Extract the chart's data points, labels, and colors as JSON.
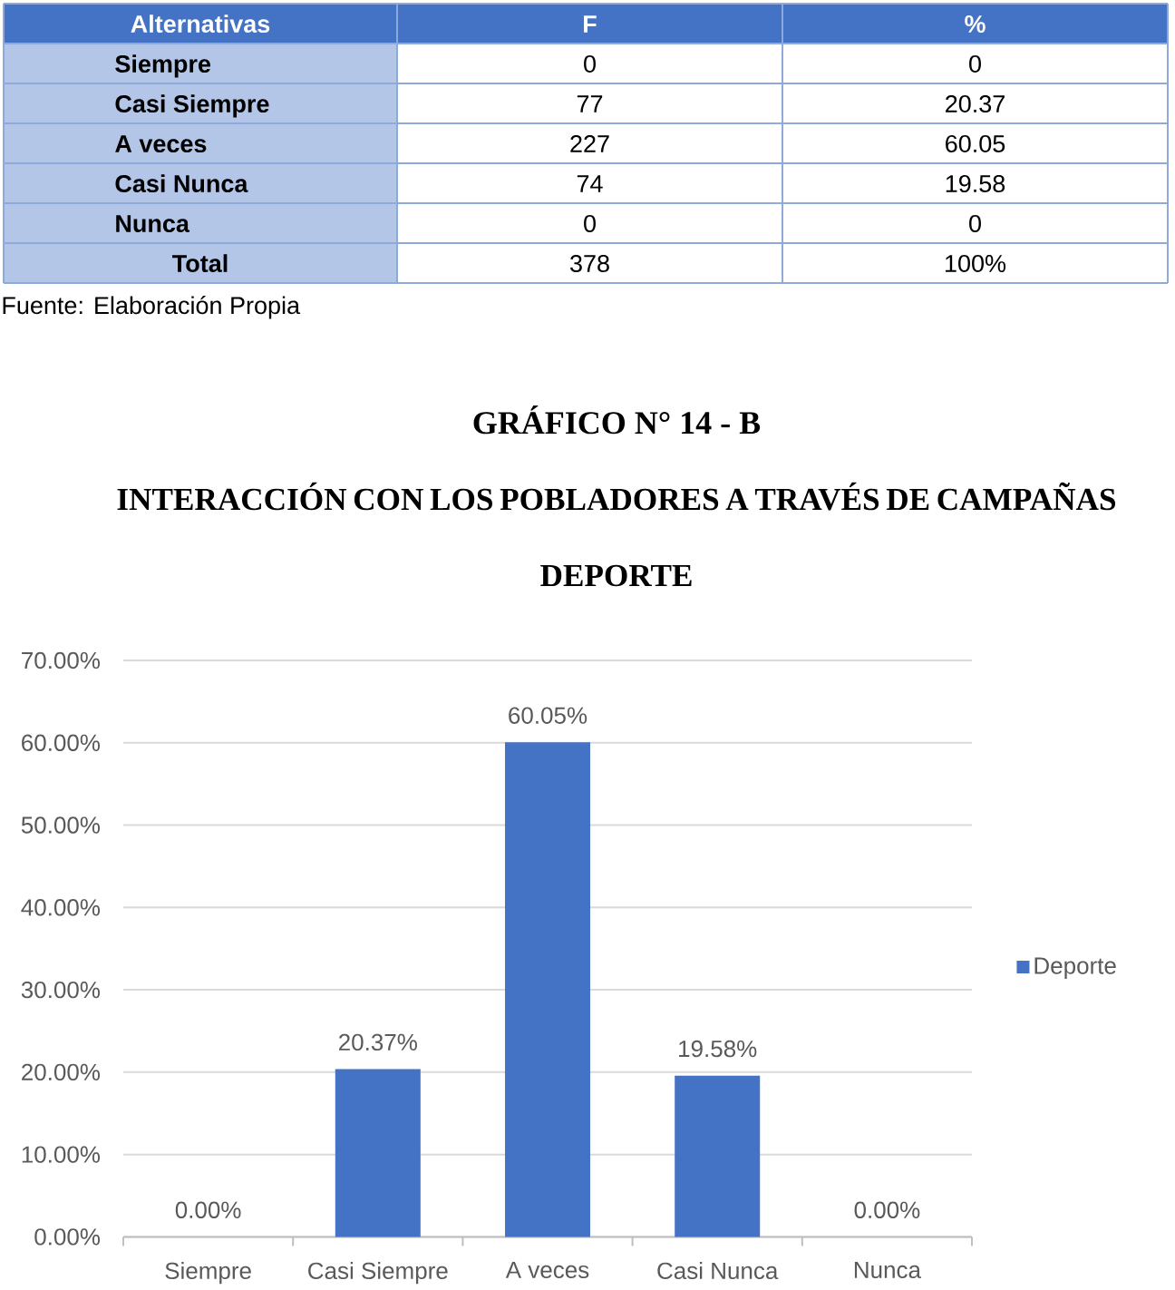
{
  "chart_data": [
    {
      "type": "other",
      "xlabel": "Alternativas",
      "categories": [
        "Siempre",
        "Casi Siempre",
        "A veces",
        "Casi Nunca",
        "Nunca",
        "Total"
      ],
      "series": [
        {
          "name": "F",
          "values": [
            0,
            77,
            227,
            74,
            0,
            378
          ]
        },
        {
          "name": "%",
          "values": [
            0,
            20.37,
            60.05,
            19.58,
            0,
            100
          ],
          "value_labels": [
            "0",
            "20.37",
            "60.05",
            "19.58",
            "0",
            "100%"
          ]
        }
      ],
      "data_labels": true,
      "annotations": [
        "Fuente: Elaboración Propia"
      ]
    },
    {
      "type": "bar",
      "title": "GRÁFICO N° 14 - B",
      "subtitle": "INTERACCIÓN CON LOS POBLADORES A TRAVÉS DE CAMPAÑAS DEPORTE",
      "categories": [
        "Siempre",
        "Casi Siempre",
        "A veces",
        "Casi Nunca",
        "Nunca"
      ],
      "series": [
        {
          "name": "Deporte",
          "color": "#4472c4",
          "values": [
            0,
            20.37,
            60.05,
            19.58,
            0
          ],
          "value_labels": [
            "0.00%",
            "20.37%",
            "60.05%",
            "19.58%",
            "0.00%"
          ]
        }
      ],
      "ylim": [
        0,
        70
      ],
      "yticks": [
        {
          "value": 0,
          "label": "0.00%"
        },
        {
          "value": 10,
          "label": "10.00%"
        },
        {
          "value": 20,
          "label": "20.00%"
        },
        {
          "value": 30,
          "label": "30.00%"
        },
        {
          "value": 40,
          "label": "40.00%"
        },
        {
          "value": 50,
          "label": "50.00%"
        },
        {
          "value": 60,
          "label": "60.00%"
        },
        {
          "value": 70,
          "label": "70.00%"
        }
      ],
      "grid": "y",
      "legend": "right"
    }
  ]
}
